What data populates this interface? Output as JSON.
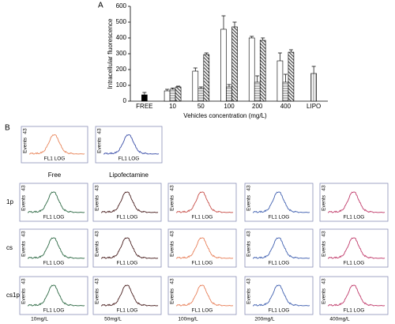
{
  "chart_data": {
    "type": "bar",
    "label": "A",
    "ylabel": "Intracellular fluorescence",
    "xlabel": "Vehicles concentration (mg/L)",
    "categories": [
      "FREE",
      "10",
      "50",
      "100",
      "200",
      "400",
      "LIPO"
    ],
    "ylim": [
      0,
      600
    ],
    "yticks": [
      0,
      100,
      200,
      300,
      400,
      500,
      600
    ],
    "series": [
      {
        "color": "#000000",
        "values": [
          40,
          null,
          null,
          null,
          null,
          null,
          null
        ],
        "errors": [
          15,
          null,
          null,
          null,
          null,
          null,
          null
        ]
      },
      {
        "color": "#ffffff",
        "values": [
          null,
          65,
          190,
          455,
          400,
          255,
          null
        ],
        "errors": [
          null,
          10,
          20,
          85,
          10,
          50,
          null
        ]
      },
      {
        "color": "#888888",
        "hatch": "horizontal",
        "values": [
          null,
          75,
          80,
          90,
          120,
          120,
          null
        ],
        "errors": [
          null,
          8,
          10,
          15,
          40,
          50,
          null
        ]
      },
      {
        "color": "#444444",
        "hatch": "diagonal",
        "values": [
          null,
          90,
          295,
          470,
          385,
          310,
          null
        ],
        "errors": [
          null,
          5,
          10,
          30,
          15,
          15,
          null
        ]
      },
      {
        "color": "#999999",
        "hatch": "vertical",
        "values": [
          null,
          null,
          null,
          null,
          null,
          null,
          175
        ],
        "errors": [
          null,
          null,
          null,
          null,
          null,
          null,
          45
        ]
      }
    ]
  },
  "panel_b": {
    "label": "B",
    "y_label": "Events",
    "y_max": "43",
    "x_label": "FL1 LOG",
    "controls": [
      {
        "name": "Free",
        "color": "#e8855a"
      },
      {
        "name": "Lipofectamine",
        "color": "#3a4ea8"
      }
    ],
    "rows": [
      {
        "name": "1p",
        "colors": [
          "#2e6a45",
          "#4a2020",
          "#c8504a",
          "#4060b0",
          "#c03a6a"
        ]
      },
      {
        "name": "cs",
        "colors": [
          "#2e6a45",
          "#4a2020",
          "#e8805a",
          "#4060b0",
          "#c03a6a"
        ]
      },
      {
        "name": "cs1p",
        "colors": [
          "#2e6a45",
          "#4a2020",
          "#e8805a",
          "#4060b0",
          "#c03a6a"
        ]
      }
    ],
    "columns": [
      "10mg/L",
      "50mg/L",
      "100mg/L",
      "200mg/L",
      "400mg/L"
    ]
  }
}
